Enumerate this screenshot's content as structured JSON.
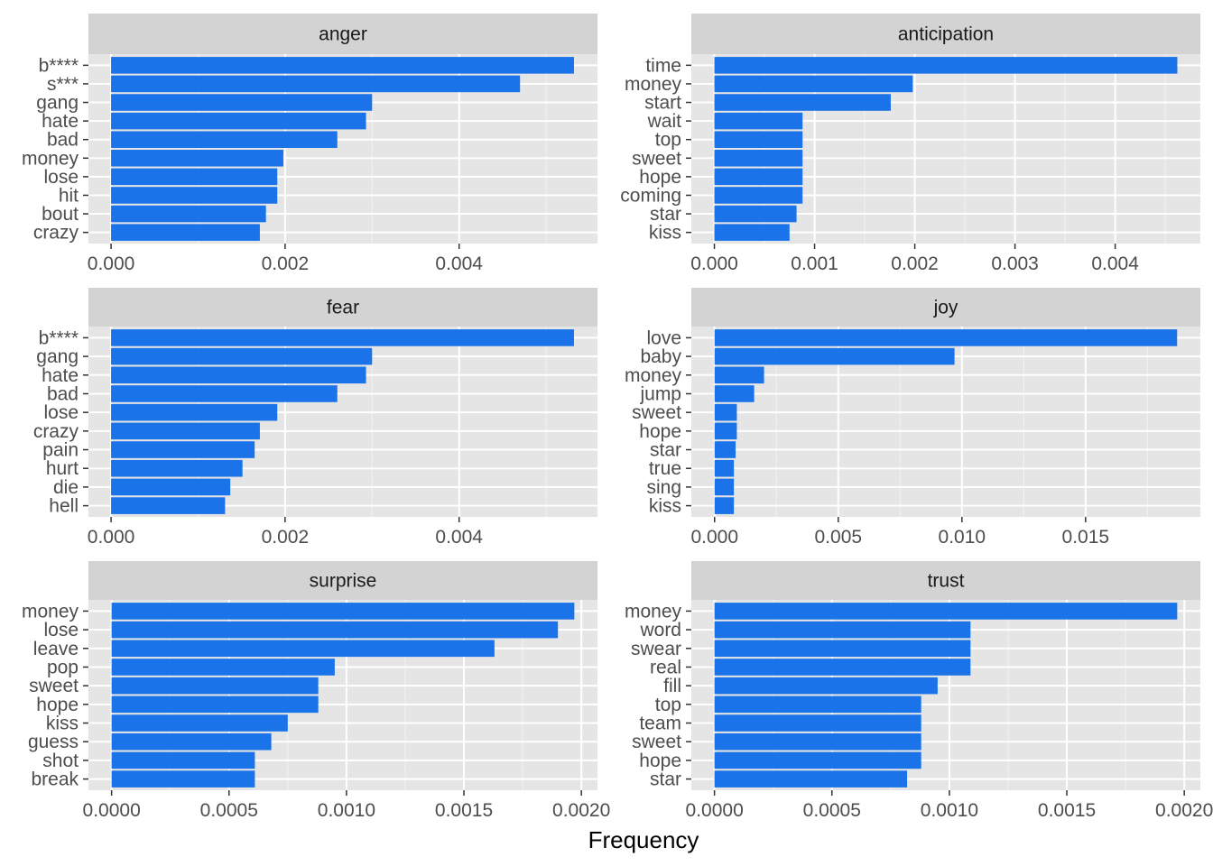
{
  "chart_data": {
    "type": "bar",
    "orientation": "horizontal",
    "facet_layout": "3 rows x 2 columns",
    "xlabel": "Frequency",
    "bar_color": "#1A73E8",
    "panel_background": "#E5E5E5",
    "strip_background": "#D3D3D3",
    "grid": true,
    "legend": "none",
    "panels": [
      {
        "name": "anger",
        "categories": [
          "b****",
          "s***",
          "gang",
          "hate",
          "bad",
          "money",
          "lose",
          "hit",
          "bout",
          "crazy"
        ],
        "values": [
          0.00532,
          0.0047,
          0.003,
          0.00293,
          0.0026,
          0.00198,
          0.00191,
          0.00191,
          0.00178,
          0.00171
        ],
        "xlim": [
          -0.00026,
          0.00559
        ],
        "ticks": [
          0,
          0.002,
          0.004
        ],
        "tick_labels": [
          "0.000",
          "0.002",
          "0.004"
        ]
      },
      {
        "name": "anticipation",
        "categories": [
          "time",
          "money",
          "start",
          "wait",
          "top",
          "sweet",
          "hope",
          "coming",
          "star",
          "kiss"
        ],
        "values": [
          0.00462,
          0.00198,
          0.00176,
          0.00088,
          0.00088,
          0.00088,
          0.00088,
          0.00088,
          0.00082,
          0.00075
        ],
        "xlim": [
          -0.00023,
          0.00485
        ],
        "ticks": [
          0,
          0.001,
          0.002,
          0.003,
          0.004
        ],
        "tick_labels": [
          "0.000",
          "0.001",
          "0.002",
          "0.003",
          "0.004"
        ]
      },
      {
        "name": "fear",
        "categories": [
          "b****",
          "gang",
          "hate",
          "bad",
          "lose",
          "crazy",
          "pain",
          "hurt",
          "die",
          "hell"
        ],
        "values": [
          0.00532,
          0.003,
          0.00293,
          0.0026,
          0.00191,
          0.00171,
          0.00165,
          0.00151,
          0.00137,
          0.00131
        ],
        "xlim": [
          -0.00026,
          0.00559
        ],
        "ticks": [
          0,
          0.002,
          0.004
        ],
        "tick_labels": [
          "0.000",
          "0.002",
          "0.004"
        ]
      },
      {
        "name": "joy",
        "categories": [
          "love",
          "baby",
          "money",
          "jump",
          "sweet",
          "hope",
          "star",
          "true",
          "sing",
          "kiss"
        ],
        "values": [
          0.0187,
          0.0097,
          0.002,
          0.0016,
          0.0009,
          0.0009,
          0.00085,
          0.00078,
          0.00078,
          0.00078
        ],
        "xlim": [
          -0.00094,
          0.01964
        ],
        "ticks": [
          0,
          0.005,
          0.01,
          0.015
        ],
        "tick_labels": [
          "0.000",
          "0.005",
          "0.010",
          "0.015"
        ]
      },
      {
        "name": "surprise",
        "categories": [
          "money",
          "lose",
          "leave",
          "pop",
          "sweet",
          "hope",
          "kiss",
          "guess",
          "shot",
          "break"
        ],
        "values": [
          0.00197,
          0.0019,
          0.00163,
          0.00095,
          0.00088,
          0.00088,
          0.00075,
          0.00068,
          0.00061,
          0.00061
        ],
        "xlim": [
          -9.85e-05,
          0.0020685
        ],
        "ticks": [
          0,
          0.0005,
          0.001,
          0.0015,
          0.002
        ],
        "tick_labels": [
          "0.0000",
          "0.0005",
          "0.0010",
          "0.0015",
          "0.0020"
        ]
      },
      {
        "name": "trust",
        "categories": [
          "money",
          "word",
          "swear",
          "real",
          "fill",
          "top",
          "team",
          "sweet",
          "hope",
          "star"
        ],
        "values": [
          0.00197,
          0.00109,
          0.00109,
          0.00109,
          0.00095,
          0.00088,
          0.00088,
          0.00088,
          0.00088,
          0.00082
        ],
        "xlim": [
          -9.85e-05,
          0.0020685
        ],
        "ticks": [
          0,
          0.0005,
          0.001,
          0.0015,
          0.002
        ],
        "tick_labels": [
          "0.0000",
          "0.0005",
          "0.0010",
          "0.0015",
          "0.0020"
        ]
      }
    ]
  }
}
